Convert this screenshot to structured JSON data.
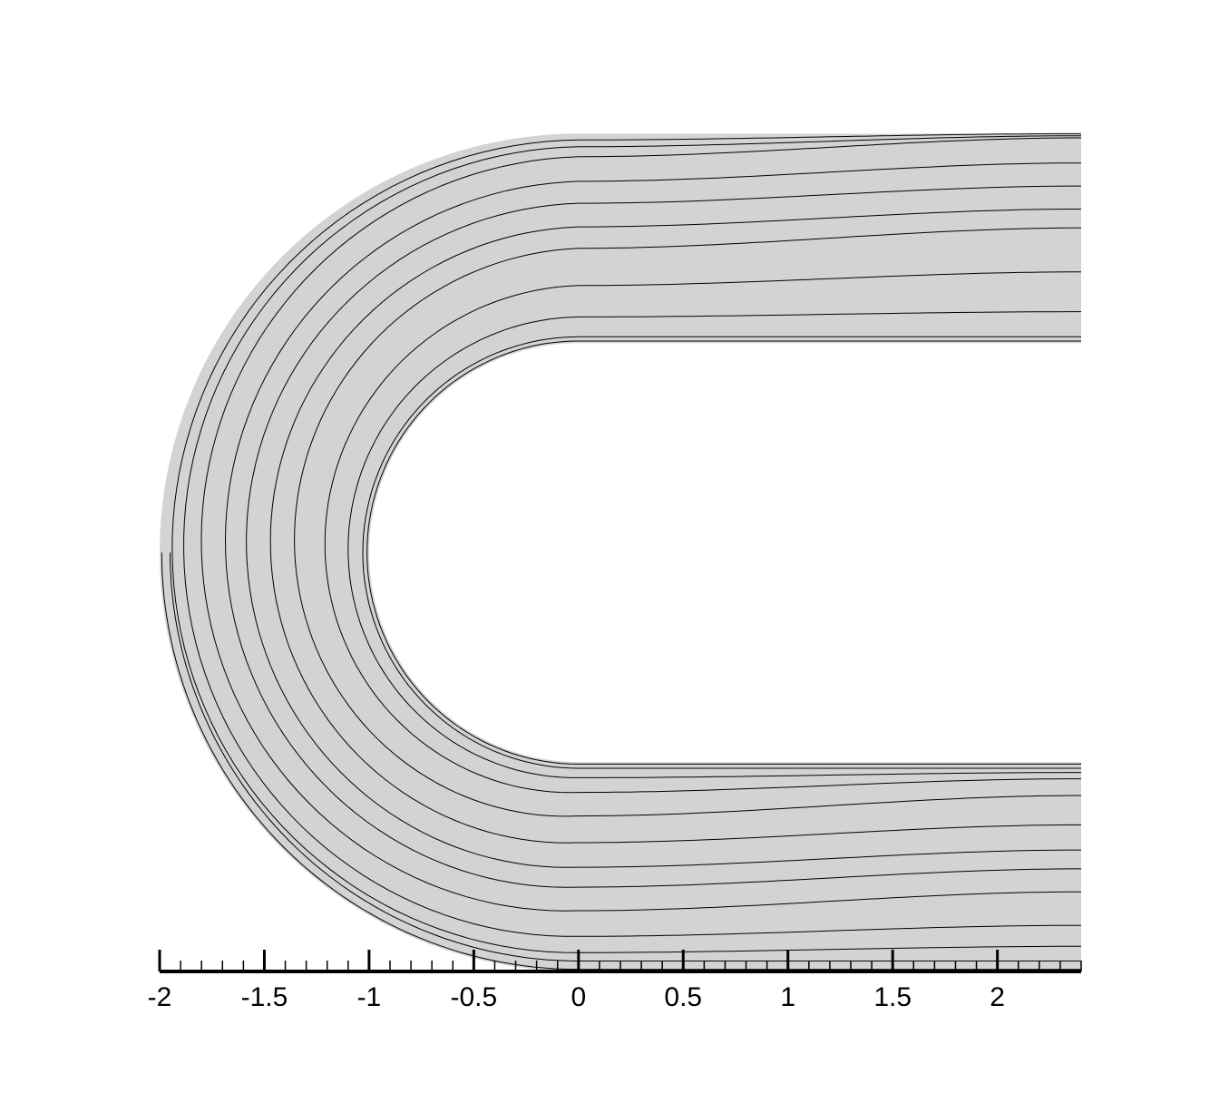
{
  "chart_data": {
    "type": "streamline",
    "title": "",
    "xlabel": "",
    "ylabel": "",
    "xlim": [
      -2,
      2.4
    ],
    "x_major_ticks": [
      -2,
      -1.5,
      -1,
      -0.5,
      0,
      0.5,
      1,
      1.5,
      2
    ],
    "x_tick_labels": [
      "-2",
      "-1.5",
      "-1",
      "-0.5",
      "0",
      "0.5",
      "1",
      "1.5",
      "2"
    ],
    "x_minor_step": 0.1,
    "grid": false,
    "domain": {
      "shape": "U-bend channel",
      "bend_center": [
        0,
        2
      ],
      "outer_radius": 2,
      "inner_radius": 1,
      "straight_leg_end_x": 2.4
    },
    "streamline_offsets": {
      "upper_leg": [
        0.01,
        0.03,
        0.15,
        0.34,
        0.55,
        0.64,
        0.75,
        0.86,
        0.98,
        0.99,
        1.0
      ],
      "lower_leg": [
        0.01,
        0.03,
        0.05,
        0.08,
        0.16,
        0.3,
        0.42,
        0.51,
        0.62,
        0.78,
        0.88,
        0.95,
        0.99
      ]
    },
    "colors": {
      "fill": "#d3d3d3",
      "line": "#000000",
      "background": "#ffffff"
    }
  }
}
